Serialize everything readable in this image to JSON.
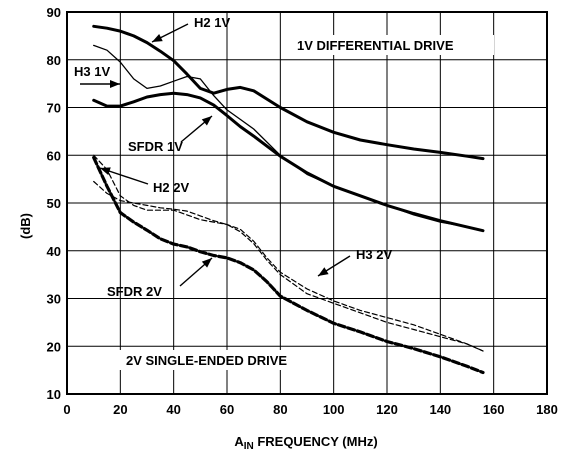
{
  "chart_data": {
    "type": "line",
    "xlabel": {
      "main": "A",
      "sub": "IN",
      "rest": " FREQUENCY (MHz)"
    },
    "ylabel": "(dB)",
    "xlim": [
      0,
      180
    ],
    "ylim": [
      10,
      90
    ],
    "xticks": [
      0,
      20,
      40,
      60,
      80,
      100,
      120,
      140,
      160,
      180
    ],
    "yticks": [
      10,
      20,
      30,
      40,
      50,
      60,
      70,
      80,
      90
    ],
    "grid": true,
    "annotations": {
      "diff_drive": "1V DIFFERENTIAL DRIVE",
      "se_drive": "2V SINGLE-ENDED DRIVE",
      "h2_1v": "H2 1V",
      "h3_1v": "H3 1V",
      "sfdr_1v": "SFDR 1V",
      "h2_2v": "H2 2V",
      "h3_2v": "H3 2V",
      "sfdr_2v": "SFDR 2V"
    },
    "series": [
      {
        "name": "H2 1V",
        "style": "thick",
        "x": [
          10,
          15,
          20,
          25,
          30,
          35,
          40,
          45,
          50,
          55,
          60,
          65,
          70,
          80,
          90,
          100,
          110,
          120,
          130,
          140,
          150,
          156
        ],
        "y": [
          87,
          86.6,
          86,
          85,
          83.6,
          81.8,
          79.8,
          77,
          74,
          73,
          73.8,
          74.2,
          73.5,
          70,
          67,
          64.8,
          63.2,
          62.2,
          61.3,
          60.6,
          59.8,
          59.3
        ]
      },
      {
        "name": "H3 1V",
        "style": "thin",
        "x": [
          10,
          15,
          20,
          25,
          30,
          35,
          40,
          45,
          50,
          55,
          60,
          65,
          70,
          80,
          90,
          100,
          110,
          120,
          130,
          140,
          150,
          156
        ],
        "y": [
          83,
          82,
          79.5,
          76,
          74,
          74.5,
          75.5,
          76.5,
          76,
          72.5,
          69.5,
          67.5,
          65.5,
          60,
          56,
          53.5,
          51.5,
          49.5,
          47.5,
          46,
          45,
          44.2
        ]
      },
      {
        "name": "SFDR 1V",
        "style": "thick",
        "x": [
          10,
          15,
          20,
          25,
          30,
          35,
          40,
          45,
          50,
          55,
          60,
          65,
          70,
          80,
          90,
          100,
          110,
          120,
          130,
          140,
          150,
          156
        ],
        "y": [
          71.5,
          70.3,
          70.3,
          71.2,
          72.2,
          72.7,
          73,
          72.7,
          72,
          70.5,
          68.3,
          66,
          64,
          59.8,
          56.3,
          53.5,
          51.5,
          49.5,
          47.8,
          46.3,
          45,
          44.2
        ]
      },
      {
        "name": "H2 2V",
        "style": "dashed-thin",
        "x": [
          10,
          15,
          20,
          25,
          30,
          35,
          40,
          45,
          50,
          55,
          60,
          65,
          70,
          75,
          80,
          90,
          100,
          110,
          120,
          130,
          140,
          150,
          156
        ],
        "y": [
          60,
          57,
          51.5,
          49.5,
          48.5,
          48.5,
          48.5,
          47.5,
          46.5,
          46,
          45.5,
          44.5,
          42,
          38.5,
          35.5,
          32,
          29.5,
          27.5,
          26,
          24.5,
          22.5,
          20.5,
          19
        ]
      },
      {
        "name": "H3 2V",
        "style": "dashed-thin",
        "x": [
          10,
          15,
          20,
          25,
          30,
          35,
          40,
          45,
          50,
          55,
          60,
          65,
          70,
          75,
          80,
          90,
          100,
          110,
          120,
          130,
          140,
          150,
          156
        ],
        "y": [
          54.5,
          52,
          50.5,
          50,
          49.5,
          49,
          48.7,
          48.3,
          47.3,
          46.3,
          45.5,
          44,
          41.5,
          38,
          35,
          31,
          29,
          27,
          25,
          23.5,
          22,
          20.5,
          19
        ]
      },
      {
        "name": "SFDR 2V",
        "style": "dashed-thick",
        "x": [
          10,
          15,
          20,
          25,
          30,
          35,
          40,
          45,
          50,
          55,
          60,
          65,
          70,
          75,
          80,
          90,
          100,
          110,
          120,
          130,
          140,
          150,
          156
        ],
        "y": [
          59.5,
          53.5,
          48,
          46,
          44.3,
          42.5,
          41.4,
          40.8,
          39.8,
          39,
          38.5,
          37.5,
          36,
          33.5,
          30.5,
          27.5,
          24.8,
          23,
          21,
          19.5,
          17.8,
          15.8,
          14.5
        ]
      }
    ]
  }
}
